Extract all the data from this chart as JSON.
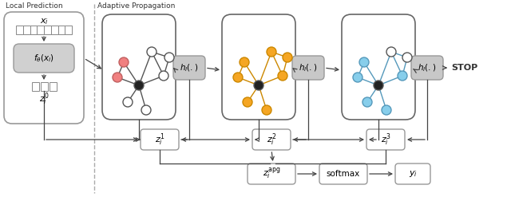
{
  "title_local": "Local Prediction",
  "title_adaptive": "Adaptive Propagation",
  "bg_color": "#ffffff",
  "node_pink": "#f08080",
  "node_orange": "#f5a623",
  "node_blue": "#87ceeb",
  "node_black": "#222222",
  "node_white": "#ffffff",
  "arrow_color": "#444444",
  "stop_text": "STOP",
  "xi": "$x_i$",
  "f_theta": "$f_{\\theta}(x_i)$",
  "z0": "$z_i^0$",
  "hl": "$h_l(.)$",
  "z1": "$z_i^1$",
  "z2": "$z_i^2$",
  "z3": "$z_i^3$",
  "zapg": "$z_i^{\\mathrm{apg}}$",
  "softmax": "softmax",
  "yi": "$y_i$"
}
